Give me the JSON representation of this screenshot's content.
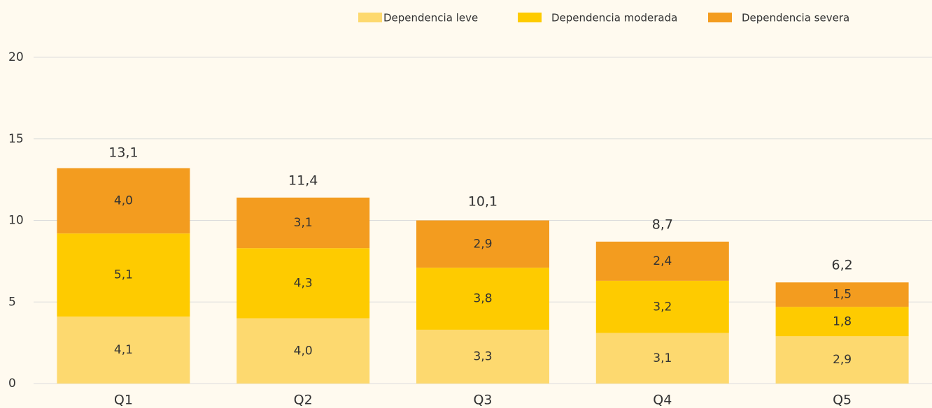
{
  "chart_data": {
    "type": "stacked_bar",
    "categories": [
      "Q1",
      "Q2",
      "Q3",
      "Q4",
      "Q5"
    ],
    "series": [
      {
        "name": "Dependencia leve",
        "color": "#fdd96f",
        "values": [
          4.1,
          4.0,
          3.3,
          3.1,
          2.9
        ],
        "value_labels": [
          "4,1",
          "4,0",
          "3,3",
          "3,1",
          "2,9"
        ]
      },
      {
        "name": "Dependencia moderada",
        "color": "#fecb00",
        "values": [
          5.1,
          4.3,
          3.8,
          3.2,
          1.8
        ],
        "value_labels": [
          "5,1",
          "4,3",
          "3,8",
          "3,2",
          "1,8"
        ]
      },
      {
        "name": "Dependencia severa",
        "color": "#f39c1f",
        "values": [
          4.0,
          3.1,
          2.9,
          2.4,
          1.5
        ],
        "value_labels": [
          "4,0",
          "3,1",
          "2,9",
          "2,4",
          "1,5"
        ]
      }
    ],
    "totals": {
      "values": [
        13.1,
        11.4,
        10.1,
        8.7,
        6.2
      ],
      "value_labels": [
        "13,1",
        "11,4",
        "10,1",
        "8,7",
        "6,2"
      ]
    },
    "ylim": [
      0,
      20
    ],
    "yticks": [
      0,
      5,
      10,
      15,
      20
    ],
    "grid": true,
    "legend": "top-right"
  }
}
